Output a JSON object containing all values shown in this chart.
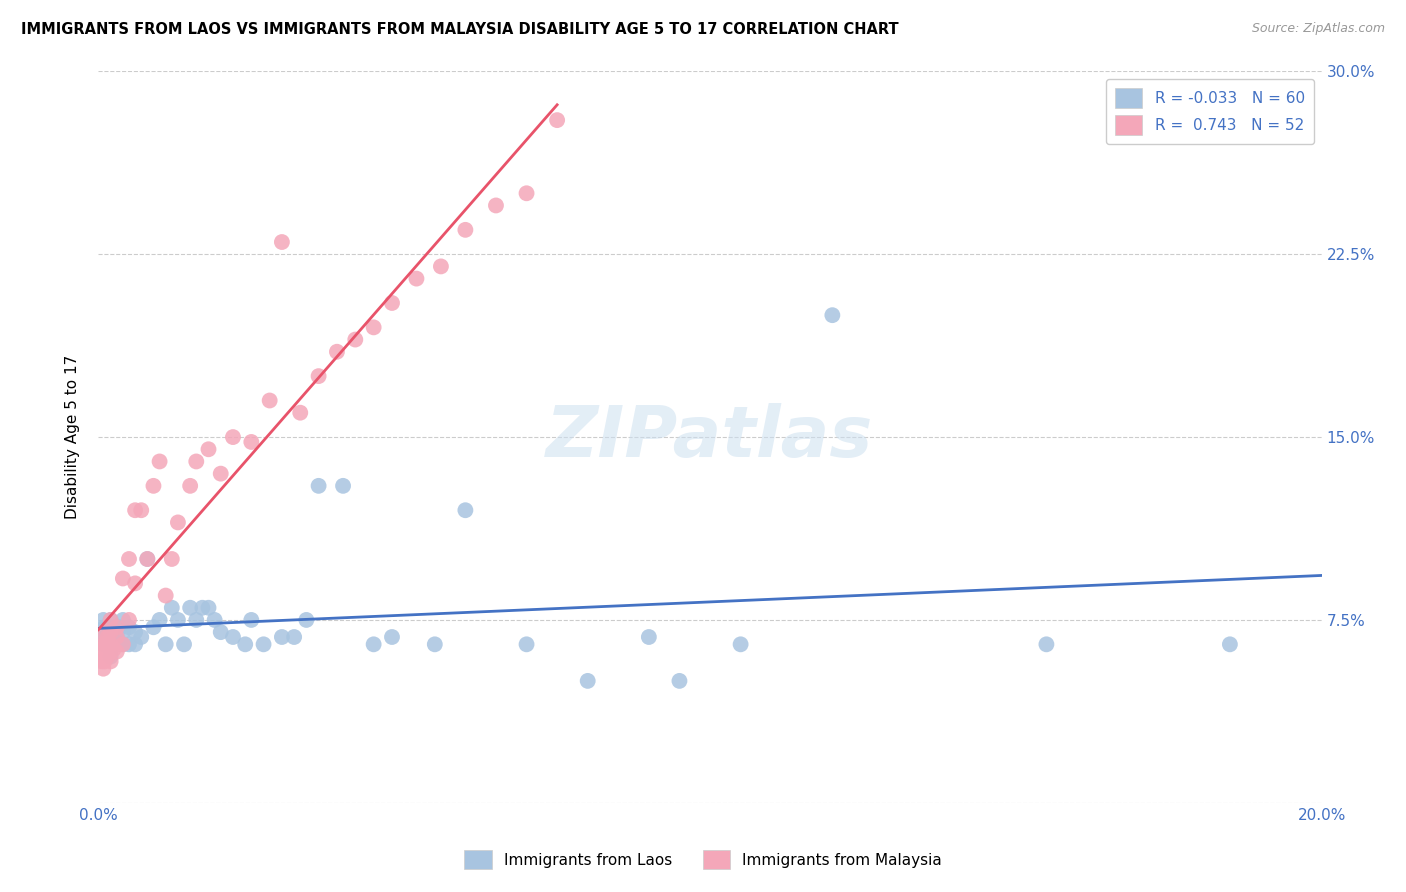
{
  "title": "IMMIGRANTS FROM LAOS VS IMMIGRANTS FROM MALAYSIA DISABILITY AGE 5 TO 17 CORRELATION CHART",
  "source": "Source: ZipAtlas.com",
  "ylabel": "Disability Age 5 to 17",
  "x_min": 0.0,
  "x_max": 0.2,
  "y_min": 0.0,
  "y_max": 0.3,
  "x_ticks": [
    0.0,
    0.05,
    0.1,
    0.15,
    0.2
  ],
  "y_ticks": [
    0.0,
    0.075,
    0.15,
    0.225,
    0.3
  ],
  "y_tick_labels": [
    "",
    "7.5%",
    "15.0%",
    "22.5%",
    "30.0%"
  ],
  "laos_color": "#a8c4e0",
  "malaysia_color": "#f4a7b9",
  "laos_line_color": "#4472c4",
  "malaysia_line_color": "#e8536a",
  "laos_R": -0.033,
  "laos_N": 60,
  "malaysia_R": 0.743,
  "malaysia_N": 52,
  "watermark": "ZIPatlas",
  "laos_x": [
    0.0005,
    0.0008,
    0.001,
    0.001,
    0.001,
    0.0012,
    0.0015,
    0.0015,
    0.002,
    0.002,
    0.002,
    0.002,
    0.002,
    0.0025,
    0.003,
    0.003,
    0.003,
    0.0035,
    0.004,
    0.004,
    0.004,
    0.005,
    0.005,
    0.006,
    0.006,
    0.007,
    0.008,
    0.009,
    0.01,
    0.011,
    0.012,
    0.013,
    0.014,
    0.015,
    0.016,
    0.017,
    0.018,
    0.019,
    0.02,
    0.022,
    0.024,
    0.025,
    0.027,
    0.03,
    0.032,
    0.034,
    0.036,
    0.04,
    0.045,
    0.048,
    0.055,
    0.06,
    0.07,
    0.08,
    0.09,
    0.095,
    0.105,
    0.12,
    0.155,
    0.185
  ],
  "laos_y": [
    0.07,
    0.075,
    0.065,
    0.072,
    0.068,
    0.07,
    0.065,
    0.072,
    0.068,
    0.072,
    0.063,
    0.075,
    0.06,
    0.068,
    0.065,
    0.07,
    0.068,
    0.072,
    0.07,
    0.065,
    0.075,
    0.065,
    0.072,
    0.065,
    0.07,
    0.068,
    0.1,
    0.072,
    0.075,
    0.065,
    0.08,
    0.075,
    0.065,
    0.08,
    0.075,
    0.08,
    0.08,
    0.075,
    0.07,
    0.068,
    0.065,
    0.075,
    0.065,
    0.068,
    0.068,
    0.075,
    0.13,
    0.13,
    0.065,
    0.068,
    0.065,
    0.12,
    0.065,
    0.05,
    0.068,
    0.05,
    0.065,
    0.2,
    0.065,
    0.065
  ],
  "malaysia_x": [
    0.0003,
    0.0005,
    0.0005,
    0.0008,
    0.001,
    0.001,
    0.001,
    0.001,
    0.0012,
    0.0015,
    0.0015,
    0.002,
    0.002,
    0.002,
    0.002,
    0.0025,
    0.003,
    0.003,
    0.003,
    0.004,
    0.004,
    0.005,
    0.005,
    0.006,
    0.006,
    0.007,
    0.008,
    0.009,
    0.01,
    0.011,
    0.012,
    0.013,
    0.015,
    0.016,
    0.018,
    0.02,
    0.022,
    0.025,
    0.028,
    0.03,
    0.033,
    0.036,
    0.039,
    0.042,
    0.045,
    0.048,
    0.052,
    0.056,
    0.06,
    0.065,
    0.07,
    0.075
  ],
  "malaysia_y": [
    0.06,
    0.065,
    0.058,
    0.055,
    0.06,
    0.065,
    0.07,
    0.058,
    0.065,
    0.06,
    0.068,
    0.065,
    0.07,
    0.075,
    0.058,
    0.063,
    0.062,
    0.072,
    0.068,
    0.065,
    0.092,
    0.075,
    0.1,
    0.09,
    0.12,
    0.12,
    0.1,
    0.13,
    0.14,
    0.085,
    0.1,
    0.115,
    0.13,
    0.14,
    0.145,
    0.135,
    0.15,
    0.148,
    0.165,
    0.23,
    0.16,
    0.175,
    0.185,
    0.19,
    0.195,
    0.205,
    0.215,
    0.22,
    0.235,
    0.245,
    0.25,
    0.28
  ]
}
